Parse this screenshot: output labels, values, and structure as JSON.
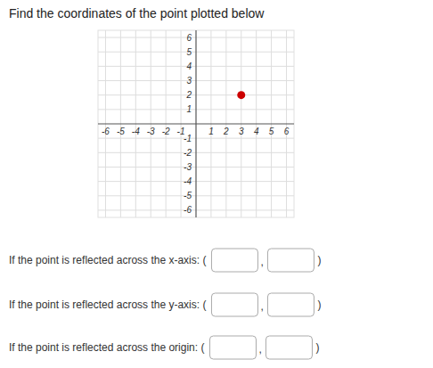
{
  "chart_data": {
    "type": "scatter",
    "title": "Find the coordinates of the point plotted below",
    "x": [
      3
    ],
    "values": [
      2
    ],
    "color": "#cc0000",
    "xlim": [
      -6.5,
      6.5
    ],
    "ylim": [
      -6.5,
      6.5
    ],
    "xticks": [
      -6,
      -5,
      -4,
      -3,
      -2,
      -1,
      1,
      2,
      3,
      4,
      5,
      6
    ],
    "yticks": [
      -6,
      -5,
      -4,
      -3,
      -2,
      -1,
      1,
      2,
      3,
      4,
      5,
      6
    ],
    "grid": true,
    "annotations": [
      {
        "label": "If the point is reflected across the x-axis: (",
        "separator": ",",
        "end": ")"
      },
      {
        "label": "If the point is reflected across the y-axis: (",
        "separator": ",",
        "end": ")"
      },
      {
        "label": "If the point is reflected across the origin: (",
        "separator": ",",
        "end": ")"
      }
    ]
  }
}
